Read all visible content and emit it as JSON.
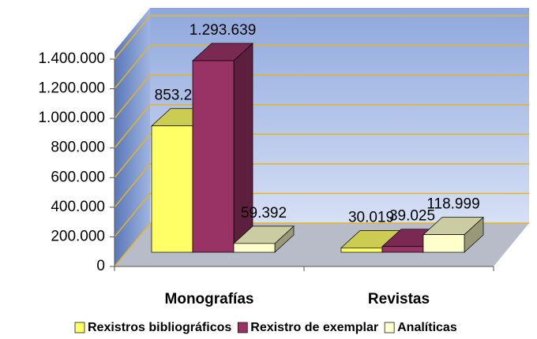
{
  "chart_data": {
    "type": "bar3d",
    "categories": [
      "Monografías",
      "Revistas"
    ],
    "series": [
      {
        "name": "Rexistros bibliográficos",
        "color": "#ffff66",
        "values": [
          853239,
          30019
        ],
        "value_labels": [
          "853.239",
          "30.019"
        ]
      },
      {
        "name": "Rexistro de exemplar",
        "color": "#993366",
        "values": [
          1293639,
          39025
        ],
        "value_labels": [
          "1.293.639",
          "39.025"
        ]
      },
      {
        "name": "Analíticas",
        "color": "#ffffcc",
        "values": [
          59392,
          118999
        ],
        "value_labels": [
          "59.392",
          "118.999"
        ]
      }
    ],
    "ylim": [
      0,
      1400000
    ],
    "yticks": [
      0,
      {
        "value": 200000,
        "label": "200.000"
      },
      {
        "value": 400000,
        "label": "400.000"
      },
      {
        "value": 600000,
        "label": "600.000"
      },
      {
        "value": 800000,
        "label": "800.000"
      },
      {
        "value": 1000000,
        "label": "1.000.000"
      },
      {
        "value": 1200000,
        "label": "1.200.000"
      },
      {
        "value": 1400000,
        "label": "1.400.000"
      }
    ],
    "grid": true,
    "legend": "bottom"
  }
}
